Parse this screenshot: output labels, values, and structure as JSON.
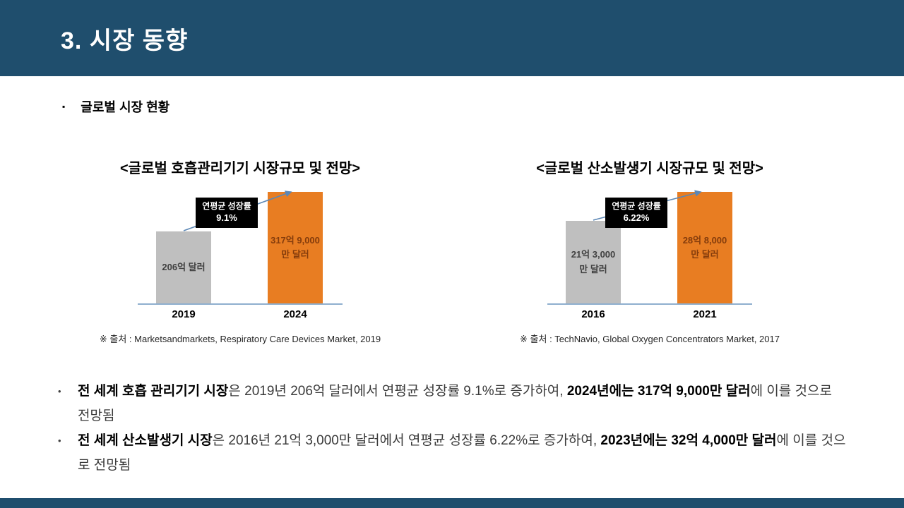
{
  "slide": {
    "title": "3. 시장 동향",
    "section_heading": "글로벌 시장 현황",
    "section_bullet_glyph": "▪",
    "list_bullet_glyph": "•"
  },
  "colors": {
    "band_blue": "#1F4E6D",
    "bar_past_gray": "#BFBFBF",
    "bar_future_orange": "#E87D22",
    "bar_past_label": "#404040",
    "bar_future_label": "#843C0C",
    "callout_black": "#000000",
    "trend_blue": "#5B87B5",
    "axis_blue": "#8FAFCE"
  },
  "charts": [
    {
      "title": "<글로벌 호흡관리기기 시장규모 및 전망>",
      "cagr_label": "연평균 성장률",
      "cagr_value": "9.1%",
      "bars": [
        {
          "year": "2019",
          "value_label": "206억 달러"
        },
        {
          "year": "2024",
          "value_label": "317억 9,000만 달러"
        }
      ],
      "source": "※ 출처 : Marketsandmarkets, Respiratory Care Devices Market, 2019"
    },
    {
      "title": "<글로벌 산소발생기 시장규모 및 전망>",
      "cagr_label": "연평균 성장률",
      "cagr_value": "6.22%",
      "bars": [
        {
          "year": "2016",
          "value_label": "21억 3,000만 달러"
        },
        {
          "year": "2021",
          "value_label": "28억 8,000만 달러"
        }
      ],
      "source": "※ 출처 : TechNavio, Global Oxygen Concentrators Market, 2017"
    }
  ],
  "chart_data": [
    {
      "type": "bar",
      "title": "<글로벌 호흡관리기기 시장규모 및 전망>",
      "categories": [
        "2019",
        "2024"
      ],
      "values": [
        206,
        317.9
      ],
      "unit": "억 달러 (hundred-million USD)",
      "value_labels": [
        "206억 달러",
        "317억 9,000만 달러"
      ],
      "bar_colors": [
        "#BFBFBF",
        "#E87D22"
      ],
      "annotation": "연평균 성장률 9.1%",
      "axes_shown": false,
      "legend": "none",
      "source": "※ 출처 : Marketsandmarkets, Respiratory Care Devices Market, 2019"
    },
    {
      "type": "bar",
      "title": "<글로벌 산소발생기 시장규모 및 전망>",
      "categories": [
        "2016",
        "2021"
      ],
      "values": [
        21.3,
        28.8
      ],
      "unit": "억 달러 (hundred-million USD)",
      "value_labels": [
        "21억 3,000만 달러",
        "28억 8,000만 달러"
      ],
      "bar_colors": [
        "#BFBFBF",
        "#E87D22"
      ],
      "annotation": "연평균 성장률 6.22%",
      "axes_shown": false,
      "legend": "none",
      "source": "※ 출처 : TechNavio, Global Oxygen Concentrators Market, 2017"
    }
  ],
  "bullets": [
    {
      "segments": [
        {
          "text": "전 세계 호흡 관리기기 시장",
          "bold": true
        },
        {
          "text": "은 2019년 206억 달러에서 연평균 성장률 9.1%로 증가하여, ",
          "bold": false
        },
        {
          "text": "2024년에는 317억 9,000만 달러",
          "bold": true
        },
        {
          "text": "에 이를 것으로 전망됨",
          "bold": false
        }
      ]
    },
    {
      "segments": [
        {
          "text": "전 세계 산소발생기 시장",
          "bold": true
        },
        {
          "text": "은 2016년 21억 3,000만 달러에서 연평균 성장률 6.22%로 증가하여, ",
          "bold": false
        },
        {
          "text": "2023년에는 32억 4,000만 달러",
          "bold": true
        },
        {
          "text": "에 이를 것으로 전망됨",
          "bold": false
        }
      ]
    }
  ]
}
